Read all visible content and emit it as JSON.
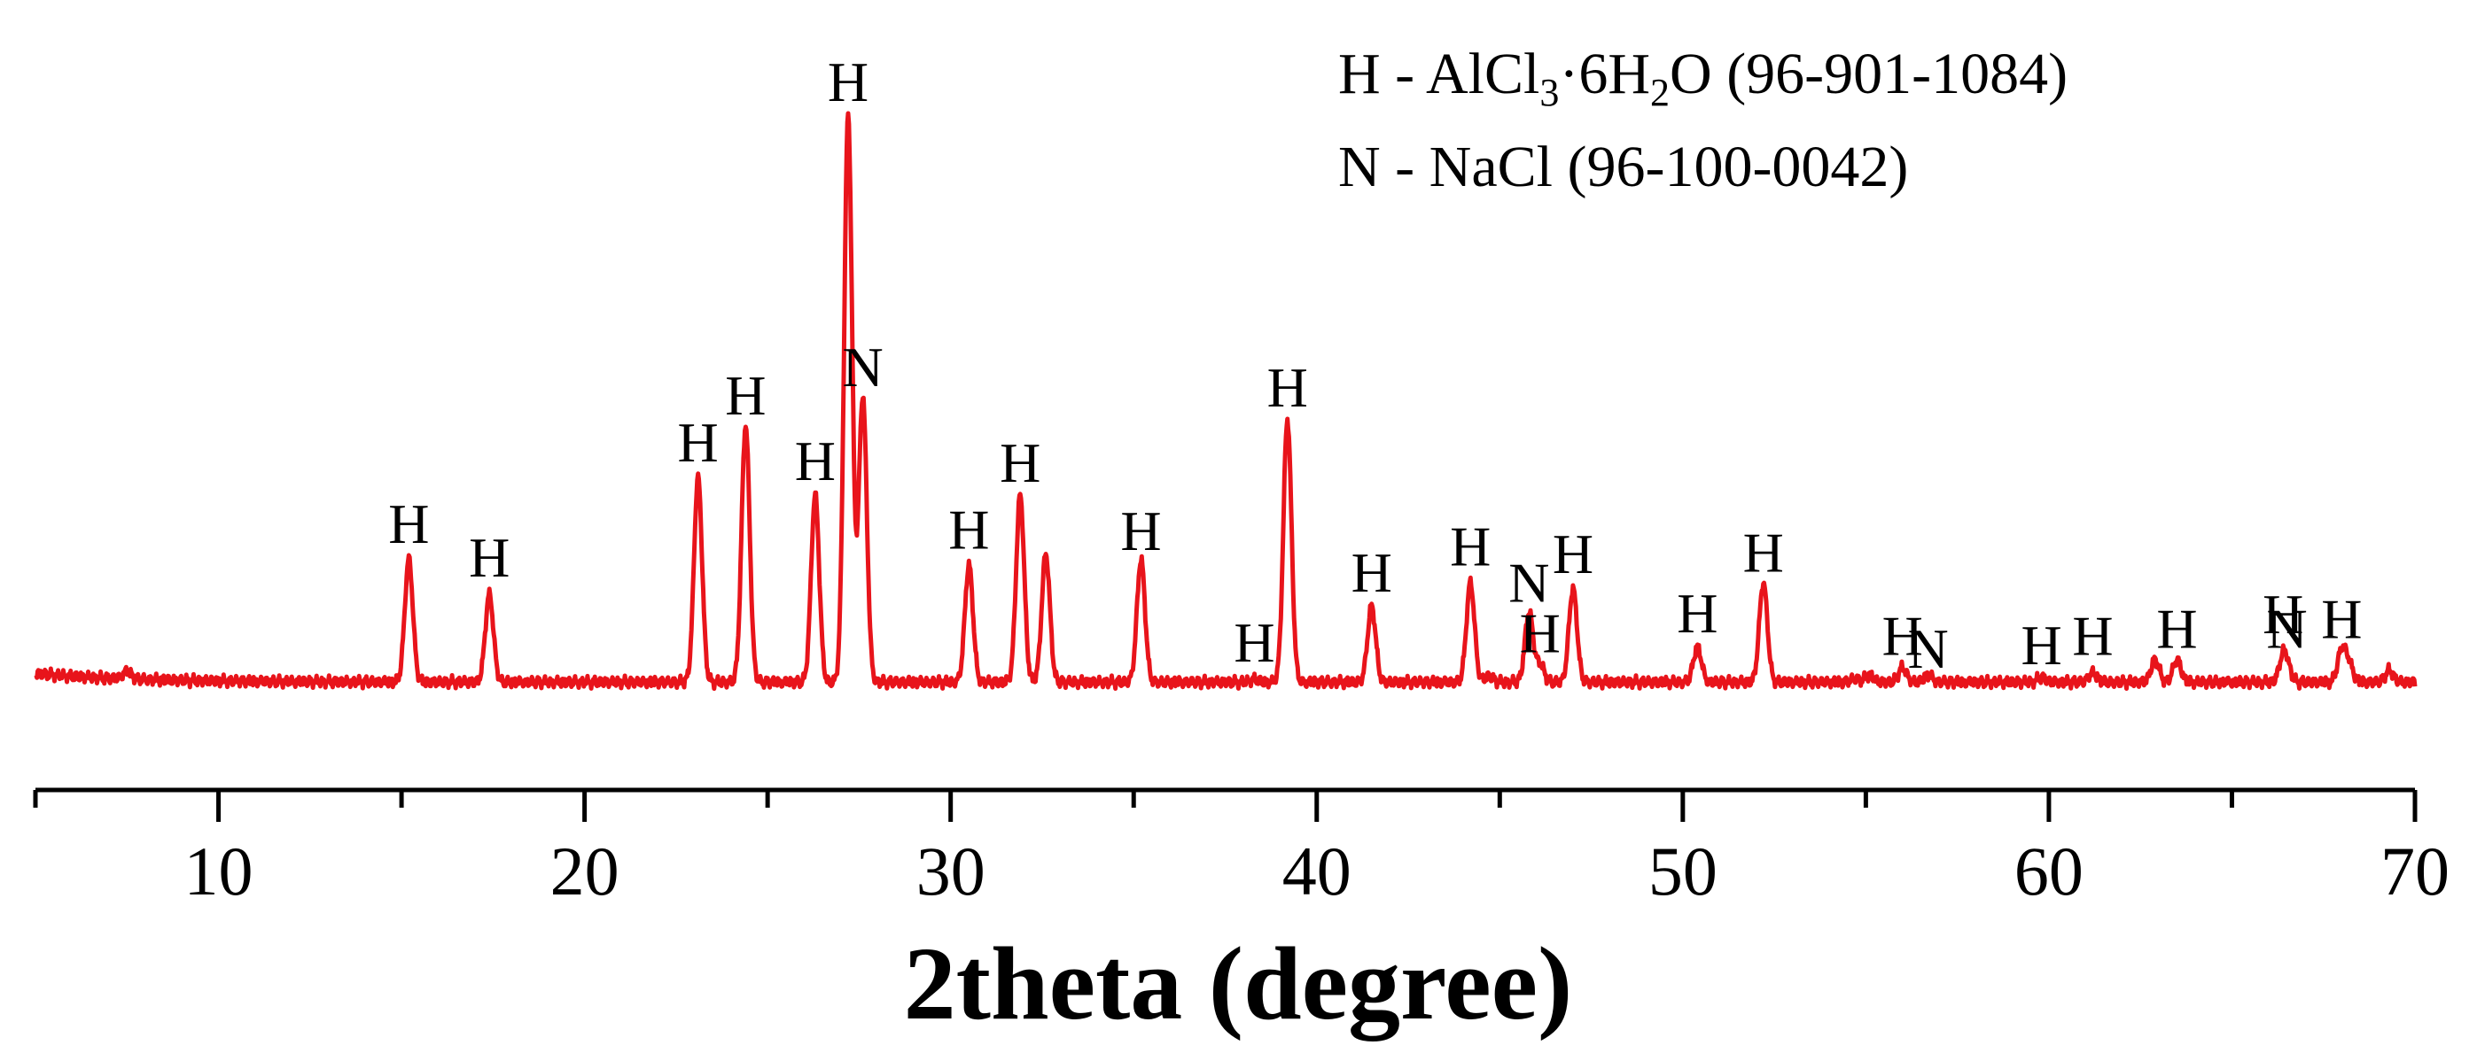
{
  "chart_data": {
    "type": "line",
    "title": "",
    "xlabel": "2theta (degree)",
    "ylabel": "",
    "xlim": [
      5,
      70
    ],
    "ylim": [
      0,
      100
    ],
    "xticks": [
      10,
      20,
      30,
      40,
      50,
      60,
      70
    ],
    "grid": false,
    "line_color": "#e8141b",
    "legend": [
      {
        "symbol": "H",
        "compound_parts": [
          "AlCl",
          "3",
          "·6H",
          "2",
          "O"
        ],
        "reference": "(96-901-1084)"
      },
      {
        "symbol": "N",
        "compound_parts": [
          "NaCl"
        ],
        "reference": "(96-100-0042)"
      }
    ],
    "baseline": 3,
    "peaks": [
      {
        "x": 7.5,
        "y": 4.3,
        "label": ""
      },
      {
        "x": 15.2,
        "y": 24,
        "label": "H"
      },
      {
        "x": 17.4,
        "y": 18,
        "label": "H"
      },
      {
        "x": 23.1,
        "y": 38,
        "label": "H"
      },
      {
        "x": 24.4,
        "y": 47,
        "label": "H"
      },
      {
        "x": 26.3,
        "y": 35,
        "label": "H"
      },
      {
        "x": 27.2,
        "y": 100,
        "label": "H"
      },
      {
        "x": 27.6,
        "y": 52,
        "label": "N"
      },
      {
        "x": 30.5,
        "y": 23,
        "label": "H"
      },
      {
        "x": 31.9,
        "y": 35,
        "label": "H"
      },
      {
        "x": 32.6,
        "y": 25,
        "label": ""
      },
      {
        "x": 35.2,
        "y": 24,
        "label": "H"
      },
      {
        "x": 38.3,
        "y": 3.5,
        "label": "H"
      },
      {
        "x": 39.2,
        "y": 48,
        "label": "H"
      },
      {
        "x": 41.5,
        "y": 16,
        "label": "H"
      },
      {
        "x": 44.2,
        "y": 20,
        "label": "H"
      },
      {
        "x": 44.7,
        "y": 4,
        "label": ""
      },
      {
        "x": 45.8,
        "y": 15,
        "label": "N"
      },
      {
        "x": 46.1,
        "y": 6,
        "label": "H"
      },
      {
        "x": 47.0,
        "y": 19,
        "label": "H"
      },
      {
        "x": 50.4,
        "y": 9,
        "label": "H"
      },
      {
        "x": 52.2,
        "y": 20,
        "label": "H"
      },
      {
        "x": 54.7,
        "y": 3.6,
        "label": ""
      },
      {
        "x": 55.1,
        "y": 4.2,
        "label": ""
      },
      {
        "x": 56.0,
        "y": 5.5,
        "label": "H"
      },
      {
        "x": 56.7,
        "y": 4.2,
        "label": "N"
      },
      {
        "x": 59.8,
        "y": 3.8,
        "label": "H"
      },
      {
        "x": 61.2,
        "y": 4.6,
        "label": "H"
      },
      {
        "x": 62.9,
        "y": 6.8,
        "label": ""
      },
      {
        "x": 63.5,
        "y": 6.8,
        "label": "H"
      },
      {
        "x": 66.4,
        "y": 7,
        "label": "H"
      },
      {
        "x": 66.5,
        "y": 5,
        "label": "N"
      },
      {
        "x": 68.0,
        "y": 8.5,
        "label": "H"
      },
      {
        "x": 68.2,
        "y": 6,
        "label": ""
      },
      {
        "x": 69.3,
        "y": 5,
        "label": ""
      }
    ]
  }
}
